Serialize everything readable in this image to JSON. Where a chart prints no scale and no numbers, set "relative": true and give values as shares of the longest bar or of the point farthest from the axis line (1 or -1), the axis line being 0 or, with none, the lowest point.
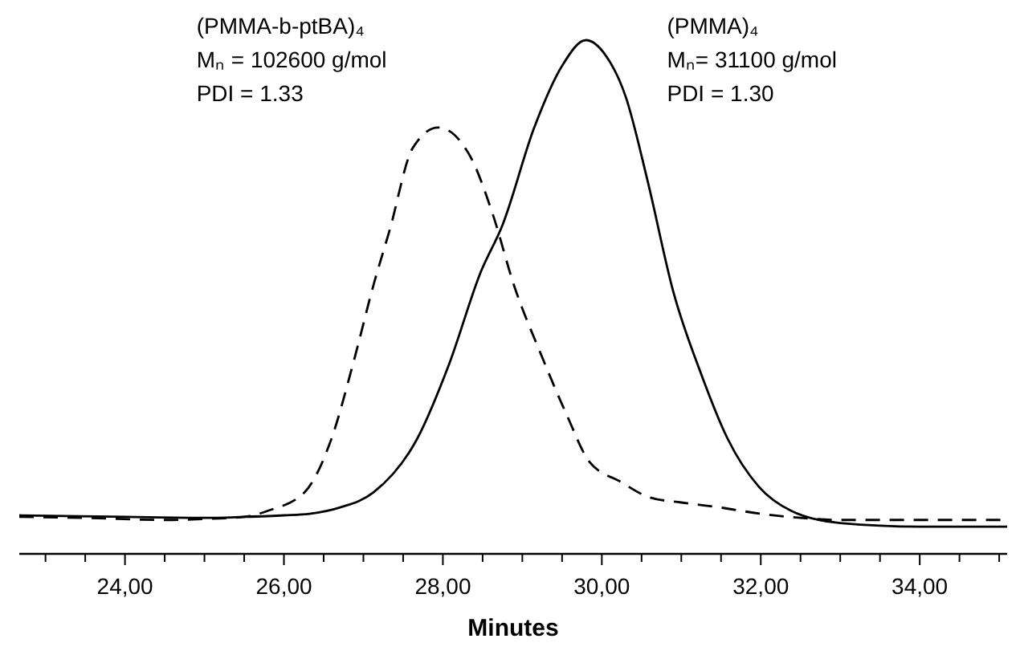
{
  "chart_data": {
    "type": "line",
    "relative": true,
    "xlabel": "Minutes",
    "xlim": [
      22.67,
      35.1
    ],
    "xticks": [
      {
        "value": 23,
        "label": null
      },
      {
        "value": 23.5,
        "label": null
      },
      {
        "value": 24,
        "label": "24,00"
      },
      {
        "value": 24.5,
        "label": null
      },
      {
        "value": 25,
        "label": null
      },
      {
        "value": 25.5,
        "label": null
      },
      {
        "value": 26,
        "label": "26,00"
      },
      {
        "value": 26.5,
        "label": null
      },
      {
        "value": 27,
        "label": null
      },
      {
        "value": 27.5,
        "label": null
      },
      {
        "value": 28,
        "label": "28,00"
      },
      {
        "value": 28.5,
        "label": null
      },
      {
        "value": 29,
        "label": null
      },
      {
        "value": 29.5,
        "label": null
      },
      {
        "value": 30,
        "label": "30,00"
      },
      {
        "value": 30.5,
        "label": null
      },
      {
        "value": 31,
        "label": null
      },
      {
        "value": 31.5,
        "label": null
      },
      {
        "value": 32,
        "label": "32,00"
      },
      {
        "value": 32.5,
        "label": null
      },
      {
        "value": 33,
        "label": null
      },
      {
        "value": 33.5,
        "label": null
      },
      {
        "value": 34,
        "label": "34,00"
      },
      {
        "value": 34.5,
        "label": null
      },
      {
        "value": 35,
        "label": null
      }
    ],
    "tick_labels": "x",
    "grid": false,
    "marker": "none",
    "series": [
      {
        "color": "#000000",
        "line_style": "dashed",
        "x": [
          22.67,
          23.5,
          24.5,
          25,
          25.5,
          25.8,
          26.26,
          26.6,
          26.87,
          27.13,
          27.33,
          27.62,
          27.94,
          28.34,
          28.63,
          28.89,
          29.23,
          29.56,
          29.84,
          30.24,
          30.6,
          31,
          31.5,
          32,
          32.5,
          33,
          34,
          35.1
        ],
        "values": [
          0.072,
          0.07,
          0.066,
          0.068,
          0.072,
          0.084,
          0.12,
          0.225,
          0.37,
          0.525,
          0.63,
          0.79,
          0.83,
          0.775,
          0.66,
          0.525,
          0.39,
          0.27,
          0.18,
          0.14,
          0.11,
          0.1,
          0.09,
          0.078,
          0.07,
          0.066,
          0.066,
          0.066
        ]
      },
      {
        "color": "#000000",
        "line_style": "solid",
        "x": [
          22.67,
          24,
          25,
          25.5,
          26,
          26.32,
          26.7,
          27.13,
          27.68,
          28.08,
          28.48,
          28.75,
          29.15,
          29.5,
          29.8,
          30.05,
          30.3,
          30.57,
          30.9,
          31.25,
          31.58,
          31.98,
          32.38,
          33,
          34,
          35.1
        ],
        "values": [
          0.075,
          0.072,
          0.07,
          0.072,
          0.075,
          0.078,
          0.09,
          0.12,
          0.225,
          0.37,
          0.55,
          0.64,
          0.83,
          0.95,
          1,
          0.97,
          0.89,
          0.73,
          0.51,
          0.35,
          0.225,
          0.13,
          0.084,
          0.06,
          0.053,
          0.053
        ]
      }
    ],
    "annotations": [
      "(PMMA-b-ptBA)₄",
      "Mₙ = 102600 g/mol",
      "PDI = 1.33",
      "(PMMA)₄",
      "Mₙ= 31100 g/mol",
      "PDI = 1.30"
    ]
  }
}
